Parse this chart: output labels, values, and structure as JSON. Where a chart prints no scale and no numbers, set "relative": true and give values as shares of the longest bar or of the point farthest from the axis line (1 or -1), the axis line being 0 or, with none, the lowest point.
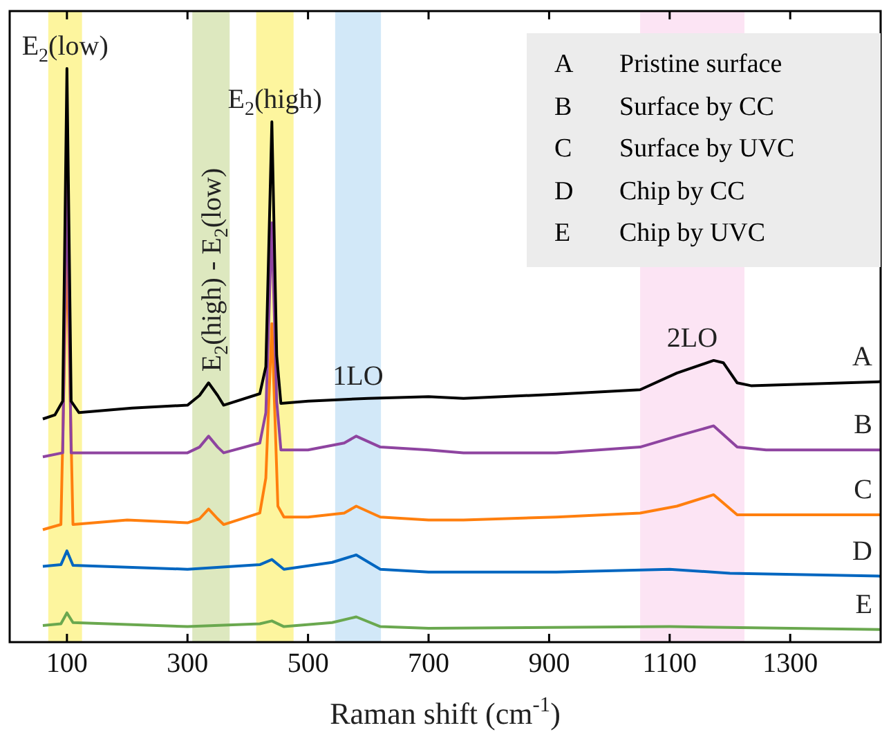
{
  "chart_data": {
    "type": "line",
    "relative": true,
    "xlabel": "Raman shift (cm$^{-1}$)",
    "xlim": [
      5,
      1450
    ],
    "xticks": [
      100,
      300,
      500,
      700,
      900,
      1100,
      1300
    ],
    "grid": false,
    "legend": false,
    "marker": "none",
    "line_style": "solid",
    "annotations": [
      "A Pristine surface",
      "B Surface by CC",
      "C Surface by UVC",
      "D Chip by CC",
      "E Chip by UVC"
    ],
    "bands": [
      {
        "axis": "x",
        "from": 69,
        "to": 125,
        "label": "E$_{2}$(low)",
        "color": "#fdf59e"
      },
      {
        "axis": "x",
        "from": 308,
        "to": 370,
        "label": "E$_{2}$(high) - E$_{2}$(low)",
        "color": "#dde8bf"
      },
      {
        "axis": "x",
        "from": 414,
        "to": 476,
        "label": "E$_{2}$(high)",
        "color": "#fdf59e"
      },
      {
        "axis": "x",
        "from": 545,
        "to": 621,
        "label": "1LO",
        "color": "#d2e8f8"
      },
      {
        "axis": "x",
        "from": 1051,
        "to": 1224,
        "label": "2LO",
        "color": "#fce4f4"
      }
    ],
    "series": [
      {
        "name": "A",
        "color": "#000000",
        "x": [
          60,
          80,
          93,
          100,
          107,
          120,
          208,
          300,
          320,
          335,
          350,
          360,
          420,
          430,
          440,
          448,
          455,
          500,
          600,
          700,
          758,
          912,
          1051,
          1112,
          1173,
          1189,
          1212,
          1235,
          1450
        ],
        "values": [
          0.389,
          0.396,
          0.42,
          1.0,
          0.42,
          0.4,
          0.408,
          0.413,
          0.43,
          0.452,
          0.43,
          0.413,
          0.433,
          0.48,
          0.907,
          0.5,
          0.416,
          0.42,
          0.425,
          0.428,
          0.425,
          0.432,
          0.44,
          0.469,
          0.491,
          0.487,
          0.452,
          0.447,
          0.454
        ]
      },
      {
        "name": "B",
        "color": "#8e44a0",
        "x": [
          60,
          93,
          100,
          107,
          200,
          300,
          320,
          335,
          350,
          360,
          420,
          430,
          440,
          448,
          455,
          500,
          560,
          580,
          620,
          700,
          758,
          912,
          1051,
          1112,
          1173,
          1212,
          1260,
          1450
        ],
        "values": [
          0.323,
          0.33,
          0.829,
          0.33,
          0.33,
          0.33,
          0.34,
          0.359,
          0.34,
          0.33,
          0.347,
          0.4,
          0.731,
          0.42,
          0.335,
          0.335,
          0.347,
          0.359,
          0.34,
          0.335,
          0.33,
          0.33,
          0.34,
          0.359,
          0.377,
          0.34,
          0.335,
          0.335
        ]
      },
      {
        "name": "C",
        "color": "#ff7f0e",
        "x": [
          60,
          90,
          100,
          110,
          200,
          300,
          320,
          335,
          350,
          360,
          420,
          430,
          440,
          450,
          460,
          500,
          560,
          580,
          620,
          700,
          758,
          912,
          1051,
          1112,
          1173,
          1212,
          1450
        ],
        "values": [
          0.196,
          0.205,
          0.694,
          0.205,
          0.213,
          0.208,
          0.215,
          0.232,
          0.215,
          0.205,
          0.225,
          0.286,
          0.555,
          0.237,
          0.218,
          0.218,
          0.225,
          0.237,
          0.218,
          0.213,
          0.213,
          0.218,
          0.225,
          0.237,
          0.257,
          0.222,
          0.222
        ]
      },
      {
        "name": "D",
        "color": "#0066c0",
        "x": [
          60,
          90,
          100,
          110,
          300,
          420,
          440,
          460,
          540,
          580,
          620,
          700,
          912,
          1100,
          1200,
          1450
        ],
        "values": [
          0.132,
          0.135,
          0.159,
          0.134,
          0.127,
          0.135,
          0.144,
          0.127,
          0.139,
          0.152,
          0.127,
          0.122,
          0.122,
          0.127,
          0.12,
          0.115
        ]
      },
      {
        "name": "E",
        "color": "#6aa84f",
        "x": [
          60,
          90,
          100,
          110,
          300,
          420,
          440,
          460,
          540,
          580,
          620,
          700,
          1100,
          1450
        ],
        "values": [
          0.029,
          0.032,
          0.051,
          0.034,
          0.027,
          0.032,
          0.037,
          0.027,
          0.034,
          0.044,
          0.027,
          0.024,
          0.027,
          0.022
        ]
      }
    ]
  }
}
